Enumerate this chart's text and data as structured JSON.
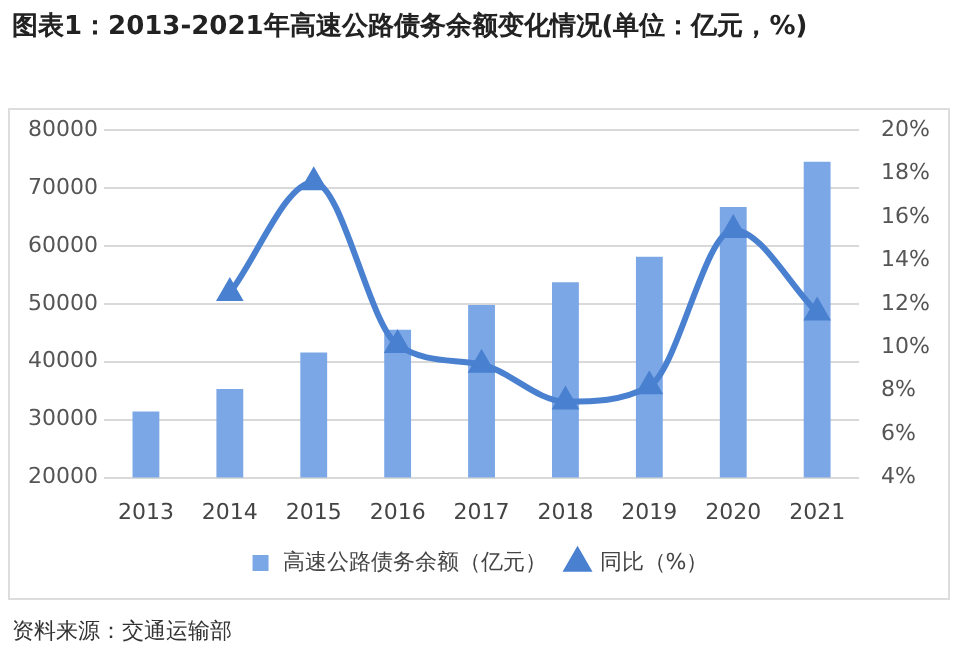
{
  "chart_data": {
    "type": "bar",
    "title": "图表1：2013-2021年高速公路债务余额变化情况(单位：亿元，%)",
    "categories": [
      "2013",
      "2014",
      "2015",
      "2016",
      "2017",
      "2018",
      "2019",
      "2020",
      "2021"
    ],
    "series": [
      {
        "name": "高速公路债务余额（亿元）",
        "color": "#7ba7e6",
        "values": [
          31400,
          35300,
          41600,
          45500,
          49800,
          53700,
          58100,
          66700,
          74500
        ]
      },
      {
        "name": "同比（%）",
        "type": "line",
        "axis": "y2",
        "color": "#4a80d0",
        "marker": "triangle",
        "values": [
          null,
          12.5,
          17.6,
          10.1,
          9.2,
          7.5,
          8.2,
          15.4,
          11.6
        ]
      }
    ],
    "ylim": [
      20000,
      80000
    ],
    "yticks": [
      20000,
      30000,
      40000,
      50000,
      60000,
      70000,
      80000
    ],
    "y2lim": [
      4,
      20
    ],
    "y2ticks": [
      {
        "value": 4,
        "label": "4%"
      },
      {
        "value": 6,
        "label": "6%"
      },
      {
        "value": 8,
        "label": "8%"
      },
      {
        "value": 10,
        "label": "10%"
      },
      {
        "value": 12,
        "label": "12%"
      },
      {
        "value": 14,
        "label": "14%"
      },
      {
        "value": 16,
        "label": "16%"
      },
      {
        "value": 18,
        "label": "18%"
      },
      {
        "value": 20,
        "label": "20%"
      }
    ],
    "grid": "y",
    "legend": "bottom",
    "annotations": [
      "资料来源：交通运输部"
    ]
  }
}
